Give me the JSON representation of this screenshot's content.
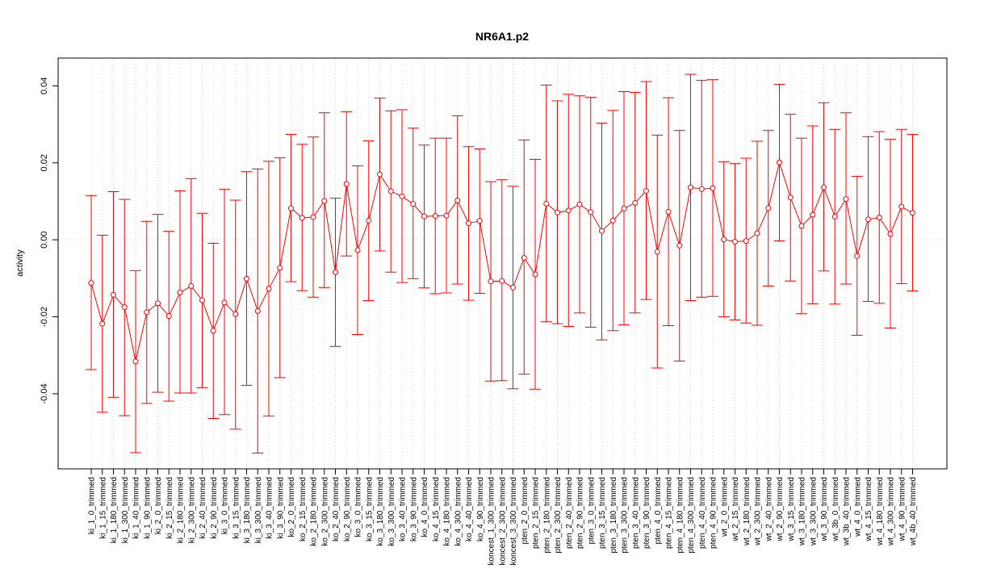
{
  "chart_data": {
    "type": "line",
    "title": "NR6A1.p2",
    "xlabel": "",
    "ylabel": "activity",
    "yticks": [
      -0.04,
      -0.02,
      0.0,
      0.02,
      0.04
    ],
    "ytick_labels": [
      "-0.04",
      "-0.02",
      "0.00",
      "0.02",
      "0.04"
    ],
    "ylim": [
      -0.0595,
      0.0472
    ],
    "grid": true,
    "colors": {
      "series": "#ff0000",
      "grid": "#d3d3d3",
      "frame": "#000000"
    },
    "categories": [
      "ki_1_0_trimmed",
      "ki_1_15_trimmed",
      "ki_1_180_trimmed",
      "ki_1_300_trimmed",
      "ki_1_40_trimmed",
      "ki_1_90_trimmed",
      "ki_2_0_trimmed",
      "ki_2_15_trimmed",
      "ki_2_180_trimmed",
      "ki_2_300_trimmed",
      "ki_2_40_trimmed",
      "ki_2_90_trimmed",
      "ki_3_0_trimmed",
      "ki_3_15_trimmed",
      "ki_3_180_trimmed",
      "ki_3_300_trimmed",
      "ki_3_40_trimmed",
      "ki_3_90_trimmed",
      "ko_2_0_trimmed",
      "ko_2_15_trimmed",
      "ko_2_180_trimmed",
      "ko_2_300_trimmed",
      "ko_2_40_trimmed",
      "ko_2_90_trimmed",
      "ko_3_0_trimmed",
      "ko_3_15_trimmed",
      "ko_3_180_trimmed",
      "ko_3_300_trimmed",
      "ko_3_40_trimmed",
      "ko_3_90_trimmed",
      "ko_4_0_trimmed",
      "ko_4_15_trimmed",
      "ko_4_180_trimmed",
      "ko_4_300_trimmed",
      "ko_4_40_trimmed",
      "ko_4_90_trimmed",
      "koncest_1_300_trimmed",
      "koncest_2_300_trimmed",
      "koncest_3_300_trimmed",
      "pten_2_0_trimmed",
      "pten_2_15_trimmed",
      "pten_2_180_trimmed",
      "pten_2_300_trimmed",
      "pten_2_40_trimmed",
      "pten_2_90_trimmed",
      "pten_3_0_trimmed",
      "pten_3_15_trimmed",
      "pten_3_180_trimmed",
      "pten_3_300_trimmed",
      "pten_3_40_trimmed",
      "pten_3_90_trimmed",
      "pten_4_0_trimmed",
      "pten_4_15_trimmed",
      "pten_4_180_trimmed",
      "pten_4_300_trimmed",
      "pten_4_40_trimmed",
      "pten_4_90_trimmed",
      "wt_2_0_trimmed",
      "wt_2_15_trimmed",
      "wt_2_180_trimmed",
      "wt_2_300_trimmed",
      "wt_2_40_trimmed",
      "wt_2_90_trimmed",
      "wt_3_15_trimmed",
      "wt_3_180_trimmed",
      "wt_3_300_trimmed",
      "wt_3_90_trimmed",
      "wt_3b_0_trimmed",
      "wt_3b_40_trimmed",
      "wt_4_0_trimmed",
      "wt_4_15_trimmed",
      "wt_4_180_trimmed",
      "wt_4_300_trimmed",
      "wt_4_90_trimmed",
      "wt_4b_40_trimmed"
    ],
    "series": [
      {
        "values": [
          -0.0112,
          -0.0218,
          -0.0143,
          -0.0175,
          -0.0316,
          -0.0188,
          -0.0165,
          -0.0198,
          -0.0137,
          -0.012,
          -0.0157,
          -0.0236,
          -0.0163,
          -0.0193,
          -0.0101,
          -0.0185,
          -0.0127,
          -0.0073,
          0.0082,
          0.0057,
          0.0059,
          0.0101,
          -0.0084,
          0.0145,
          -0.0027,
          0.005,
          0.017,
          0.0126,
          0.0113,
          0.0093,
          0.0061,
          0.0062,
          0.0063,
          0.0102,
          0.0043,
          0.0049,
          -0.0108,
          -0.0107,
          -0.0124,
          -0.0047,
          -0.009,
          0.0094,
          0.0071,
          0.0076,
          0.0092,
          0.0072,
          0.0023,
          0.005,
          0.0081,
          0.0096,
          0.0127,
          -0.0031,
          0.0073,
          -0.0015,
          0.0136,
          0.0132,
          0.0134,
          0.0001,
          -0.0005,
          -0.0003,
          0.0017,
          0.0082,
          0.0201,
          0.011,
          0.0036,
          0.0065,
          0.0136,
          0.006,
          0.0106,
          -0.0042,
          0.0053,
          0.0058,
          0.0015,
          0.0086,
          0.007
        ],
        "upper": [
          0.0115,
          0.0012,
          0.0125,
          0.0105,
          -0.008,
          0.0048,
          0.0066,
          0.0022,
          0.0127,
          0.0159,
          0.0069,
          -0.0009,
          0.0131,
          0.0103,
          0.0177,
          0.0184,
          0.0204,
          0.0213,
          0.0274,
          0.0248,
          0.0267,
          0.033,
          0.0108,
          0.0333,
          0.0192,
          0.0257,
          0.0368,
          0.0335,
          0.0338,
          0.029,
          0.0246,
          0.0264,
          0.0264,
          0.0322,
          0.0242,
          0.0236,
          0.0151,
          0.0156,
          0.0139,
          0.0259,
          0.0209,
          0.0402,
          0.0361,
          0.0378,
          0.0374,
          0.037,
          0.0303,
          0.0336,
          0.0385,
          0.0383,
          0.0411,
          0.0272,
          0.0369,
          0.0284,
          0.043,
          0.0414,
          0.0416,
          0.0203,
          0.0198,
          0.0212,
          0.0256,
          0.0284,
          0.0404,
          0.0326,
          0.0264,
          0.0296,
          0.0356,
          0.0287,
          0.033,
          0.0165,
          0.0268,
          0.0281,
          0.0261,
          0.0287,
          0.0274
        ],
        "lower": [
          -0.0337,
          -0.0448,
          -0.0409,
          -0.0457,
          -0.0553,
          -0.0425,
          -0.0396,
          -0.0419,
          -0.0398,
          -0.0398,
          -0.0384,
          -0.0464,
          -0.0454,
          -0.0492,
          -0.0378,
          -0.0554,
          -0.0458,
          -0.0358,
          -0.0109,
          -0.0132,
          -0.0149,
          -0.0124,
          -0.0277,
          -0.0042,
          -0.0246,
          -0.0158,
          -0.0029,
          -0.0084,
          -0.0111,
          -0.0101,
          -0.0125,
          -0.014,
          -0.0138,
          -0.0115,
          -0.0157,
          -0.0139,
          -0.0367,
          -0.0366,
          -0.0387,
          -0.0349,
          -0.0388,
          -0.0213,
          -0.0218,
          -0.0225,
          -0.019,
          -0.0227,
          -0.026,
          -0.0236,
          -0.0221,
          -0.019,
          -0.0155,
          -0.0333,
          -0.0223,
          -0.0315,
          -0.0158,
          -0.0149,
          -0.0147,
          -0.02,
          -0.0208,
          -0.0216,
          -0.0222,
          -0.012,
          -0.0003,
          -0.0107,
          -0.0192,
          -0.0166,
          -0.0081,
          -0.0167,
          -0.0115,
          -0.0248,
          -0.016,
          -0.0165,
          -0.0229,
          -0.0114,
          -0.0133
        ]
      }
    ]
  }
}
